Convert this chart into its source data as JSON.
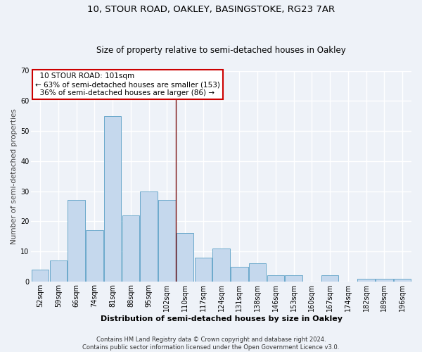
{
  "title_line1": "10, STOUR ROAD, OAKLEY, BASINGSTOKE, RG23 7AR",
  "title_line2": "Size of property relative to semi-detached houses in Oakley",
  "xlabel": "Distribution of semi-detached houses by size in Oakley",
  "ylabel": "Number of semi-detached properties",
  "footer_line1": "Contains HM Land Registry data © Crown copyright and database right 2024.",
  "footer_line2": "Contains public sector information licensed under the Open Government Licence v3.0.",
  "categories": [
    "52sqm",
    "59sqm",
    "66sqm",
    "74sqm",
    "81sqm",
    "88sqm",
    "95sqm",
    "102sqm",
    "110sqm",
    "117sqm",
    "124sqm",
    "131sqm",
    "138sqm",
    "146sqm",
    "153sqm",
    "160sqm",
    "167sqm",
    "174sqm",
    "182sqm",
    "189sqm",
    "196sqm"
  ],
  "values": [
    4,
    7,
    27,
    17,
    55,
    22,
    30,
    27,
    16,
    8,
    11,
    5,
    6,
    2,
    2,
    0,
    2,
    0,
    1,
    1,
    1
  ],
  "bar_color": "#c5d8ed",
  "bar_edge_color": "#5a9fc5",
  "property_label": "10 STOUR ROAD: 101sqm",
  "pct_smaller": 63,
  "count_smaller": 153,
  "pct_larger": 36,
  "count_larger": 86,
  "vline_position": 7.5,
  "vline_color": "#7a1010",
  "ylim": [
    0,
    70
  ],
  "background_color": "#eef2f8",
  "grid_color": "#ffffff",
  "annotation_box_color": "#ffffff",
  "annotation_box_edge": "#cc0000",
  "title1_fontsize": 9.5,
  "title2_fontsize": 8.5,
  "xlabel_fontsize": 8,
  "ylabel_fontsize": 7.5,
  "tick_fontsize": 7,
  "annot_fontsize": 7.5,
  "footer_fontsize": 6
}
